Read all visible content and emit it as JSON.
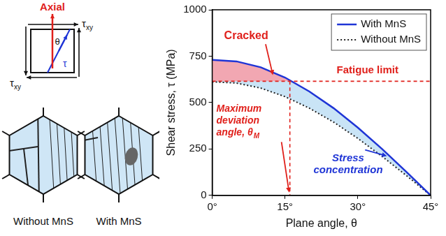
{
  "diagram": {
    "axial_label": "Axial",
    "shear_label": {
      "text": "τ",
      "sub": "xy"
    },
    "angle_label": "θ",
    "plane_stress_label": "τ",
    "grains": [
      "Without MnS",
      "With MnS"
    ]
  },
  "chart_data": {
    "type": "line",
    "x_label": "Plane angle, θ",
    "y_label": "Shear stress, τ (MPa)",
    "x": [
      0,
      5,
      10,
      15,
      20,
      25,
      30,
      35,
      40,
      45
    ],
    "xlim": [
      0,
      45
    ],
    "xticks": [
      {
        "value": 0,
        "label": "0°"
      },
      {
        "value": 15,
        "label": "15°"
      },
      {
        "value": 30,
        "label": "30°"
      },
      {
        "value": 45,
        "label": "45°"
      }
    ],
    "ylim": [
      0,
      1000
    ],
    "yticks": [
      0,
      250,
      500,
      750,
      1000
    ],
    "grid": false,
    "legend": "upper right",
    "series": [
      {
        "name": "With MnS",
        "color": "#1f35d6",
        "line_style": "solid",
        "values": [
          730,
          722,
          690,
          635,
          560,
          470,
          365,
          250,
          127,
          0
        ]
      },
      {
        "name": "Without MnS",
        "color": "#222222",
        "line_style": "dotted",
        "values": [
          612,
          605,
          578,
          532,
          470,
          395,
          307,
          210,
          107,
          0
        ]
      }
    ],
    "fatigue_limit": {
      "value": 615,
      "label": "Fatigue limit",
      "color": "#e0201b"
    },
    "max_deviation_angle": {
      "value": 16,
      "label": "Maximum deviation angle, θ",
      "sub": "M",
      "color": "#e0201b"
    },
    "annotations": [
      {
        "text": "Cracked",
        "color": "#e0201b"
      },
      {
        "text": "Stress concentration",
        "color": "#1f35d6"
      }
    ]
  }
}
